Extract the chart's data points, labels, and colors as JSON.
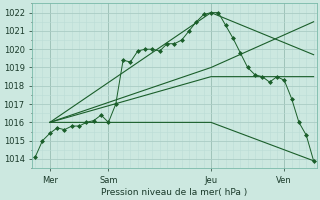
{
  "xlabel": "Pression niveau de la mer( hPa )",
  "background_color": "#cce8e0",
  "grid_color_major": "#aaccc4",
  "grid_color_minor": "#bbddd6",
  "line_color": "#1a5e2a",
  "ylim": [
    1013.5,
    1022.5
  ],
  "yticks": [
    1014,
    1015,
    1016,
    1017,
    1018,
    1019,
    1020,
    1021,
    1022
  ],
  "xlim": [
    -0.2,
    19.2
  ],
  "vline_positions": [
    1,
    5,
    12,
    17
  ],
  "xtick_positions": [
    1,
    5,
    12,
    17
  ],
  "xtick_labels": [
    "Mer",
    "Sam",
    "Jeu",
    "Ven"
  ],
  "series_detailed": {
    "x": [
      0,
      0.5,
      1.0,
      1.5,
      2.0,
      2.5,
      3.0,
      3.5,
      4.0,
      4.5,
      5.0,
      5.5,
      6.0,
      6.5,
      7.0,
      7.5,
      8.0,
      8.5,
      9.0,
      9.5,
      10.0,
      10.5,
      11.0,
      11.5,
      12.0,
      12.5,
      13.0,
      13.5,
      14.0,
      14.5,
      15.0,
      15.5,
      16.0,
      16.5,
      17.0,
      17.5,
      18.0,
      18.5,
      19.0
    ],
    "y": [
      1014.1,
      1015.0,
      1015.4,
      1015.7,
      1015.6,
      1015.8,
      1015.8,
      1016.0,
      1016.1,
      1016.4,
      1016.0,
      1017.0,
      1019.4,
      1019.3,
      1019.9,
      1020.0,
      1020.0,
      1019.9,
      1020.3,
      1020.3,
      1020.5,
      1021.0,
      1021.5,
      1021.9,
      1022.0,
      1022.0,
      1021.3,
      1020.6,
      1019.8,
      1019.0,
      1018.6,
      1018.5,
      1018.2,
      1018.5,
      1018.3,
      1017.3,
      1016.0,
      1015.3,
      1013.9
    ]
  },
  "series_lines": [
    {
      "x": [
        1.0,
        12.0,
        19.0
      ],
      "y": [
        1016.0,
        1022.0,
        1019.7
      ]
    },
    {
      "x": [
        1.0,
        12.0,
        19.0
      ],
      "y": [
        1016.0,
        1019.0,
        1021.5
      ]
    },
    {
      "x": [
        1.0,
        12.0,
        19.0
      ],
      "y": [
        1016.0,
        1018.5,
        1018.5
      ]
    },
    {
      "x": [
        1.0,
        12.0,
        19.0
      ],
      "y": [
        1016.0,
        1016.0,
        1013.9
      ]
    }
  ]
}
